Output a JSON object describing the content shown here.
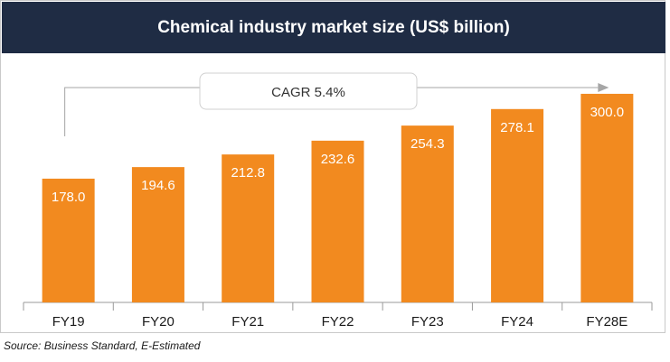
{
  "chart_data": {
    "type": "bar",
    "title": "Chemical industry market size (US$ billion)",
    "categories": [
      "FY19",
      "FY20",
      "FY21",
      "FY22",
      "FY23",
      "FY24",
      "FY28E"
    ],
    "values": [
      178.0,
      194.6,
      212.8,
      232.6,
      254.3,
      278.1,
      300.0
    ],
    "value_labels": [
      "178.0",
      "194.6",
      "212.8",
      "232.6",
      "254.3",
      "278.1",
      "300.0"
    ],
    "ylim": [
      0,
      420
    ],
    "xlabel": "",
    "ylabel": "",
    "grid": false,
    "annotation": "CAGR 5.4%",
    "colors": {
      "bar": "#f28a1f",
      "title_bg": "#1f2c44",
      "value_label": "#ffffff"
    }
  },
  "source": "Source: Business Standard, E-Estimated"
}
